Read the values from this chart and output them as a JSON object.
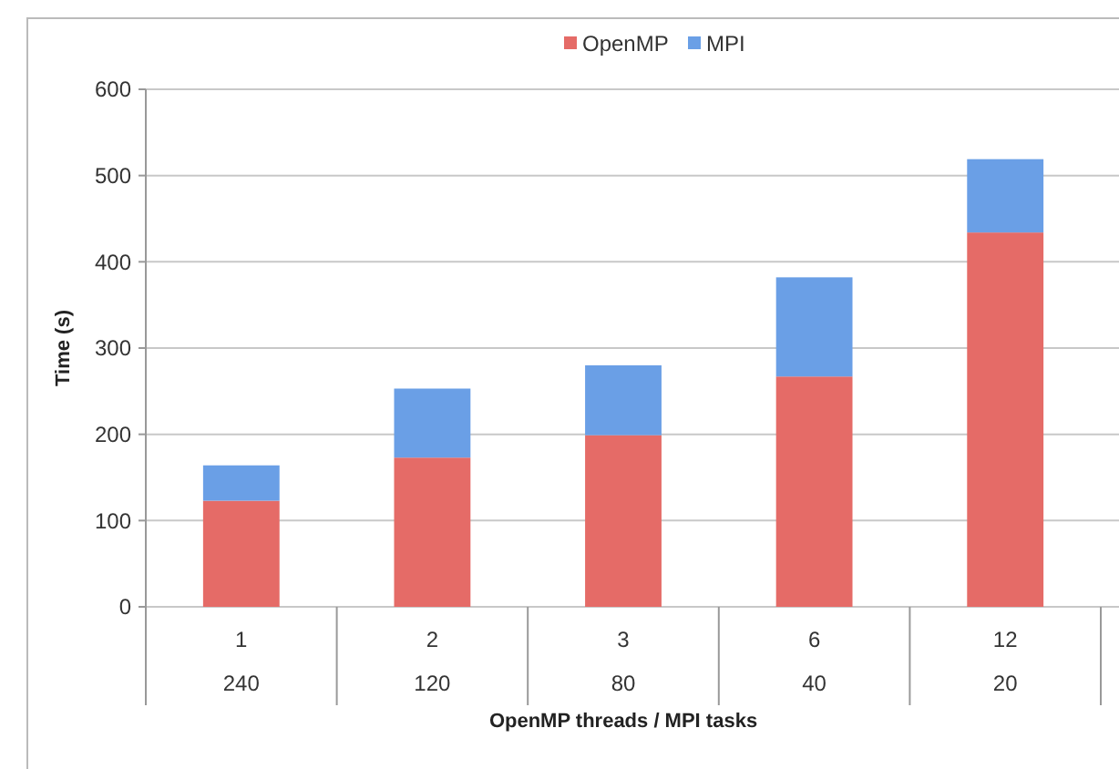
{
  "chart_data": {
    "type": "bar",
    "stacked": true,
    "xlabel": "OpenMP threads / MPI tasks",
    "ylabel": "Time (s)",
    "categories": [
      "1\n240",
      "2\n120",
      "3\n80",
      "6\n40",
      "12\n20"
    ],
    "series": [
      {
        "name": "OpenMP",
        "color": "#e56b67",
        "values": [
          123,
          173,
          199,
          267,
          434
        ]
      },
      {
        "name": "MPI",
        "color": "#6a9fe6",
        "values": [
          41,
          80,
          81,
          115,
          85
        ]
      }
    ],
    "ylim": [
      0,
      600
    ],
    "yticks": [
      0,
      100,
      200,
      300,
      400,
      500,
      600
    ],
    "grid": "y",
    "legend": "top"
  }
}
